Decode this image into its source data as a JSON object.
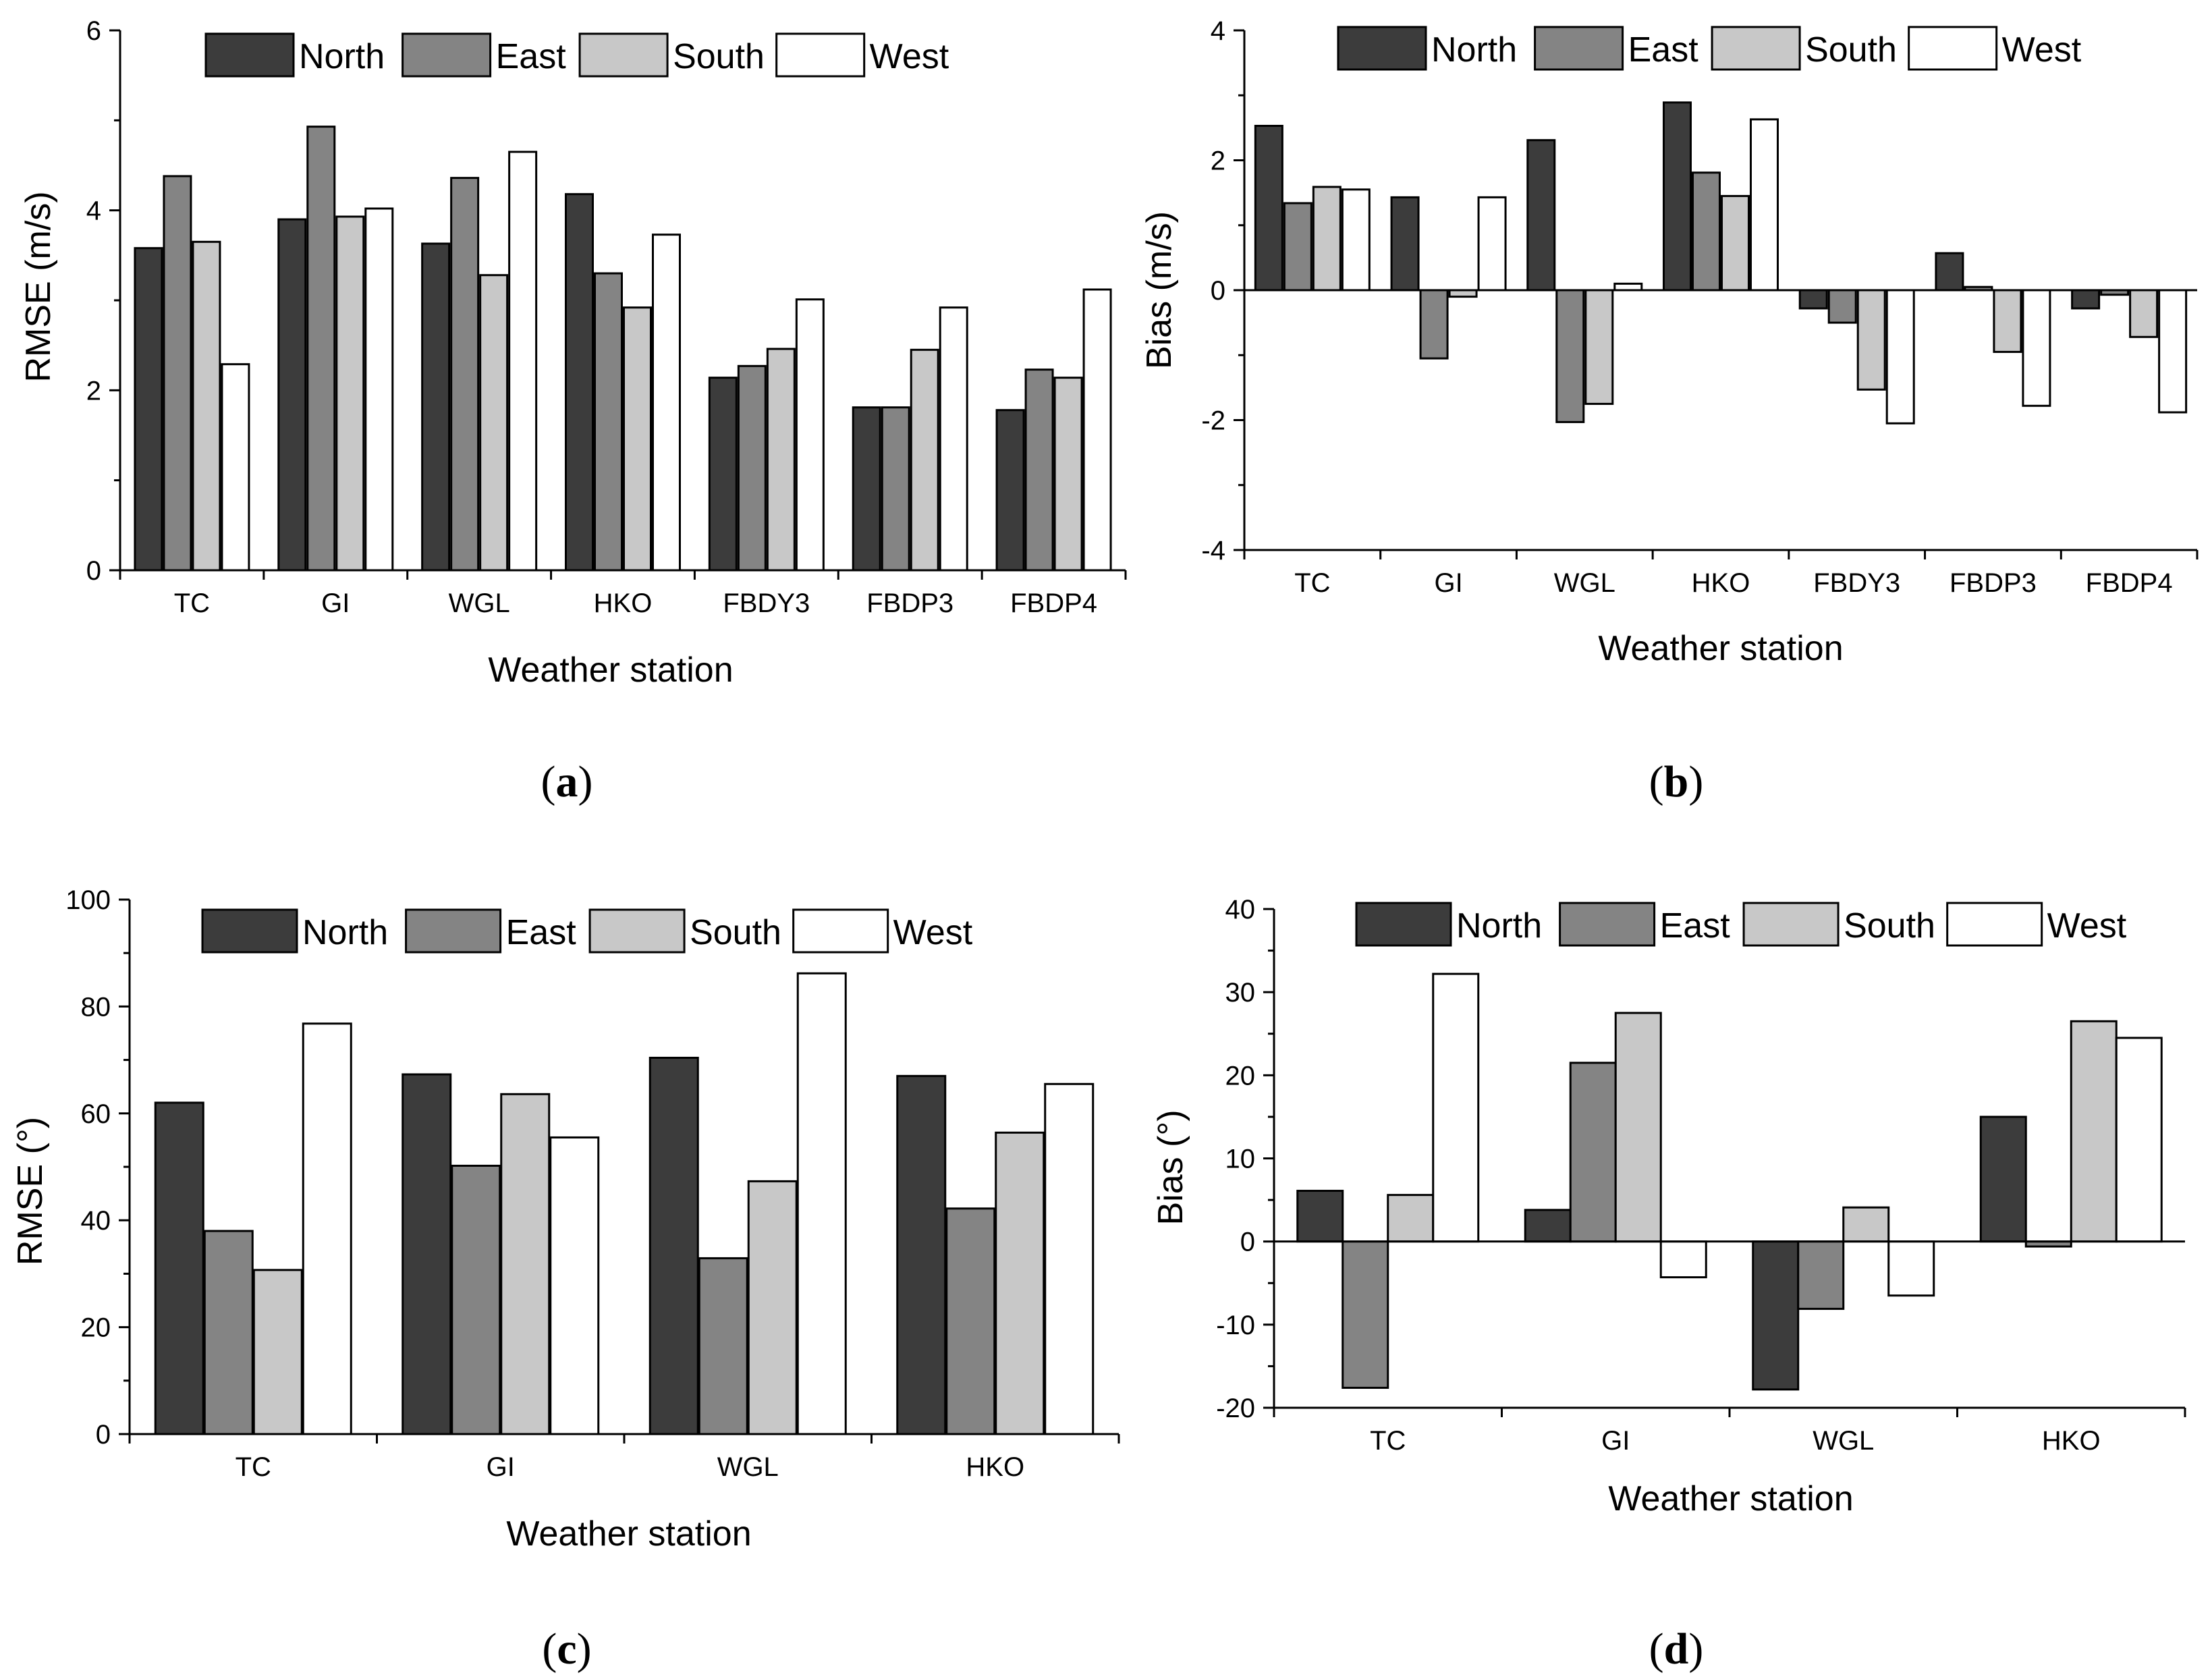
{
  "colors": {
    "North": "#3c3c3c",
    "East": "#848484",
    "South": "#c8c8c8",
    "West": "#ffffff",
    "stroke": "#000000"
  },
  "chart_data": [
    {
      "id": "a",
      "caption": "a",
      "type": "bar",
      "xlabel": "Weather station",
      "ylabel": "RMSE (m/s)",
      "categories": [
        "TC",
        "GI",
        "WGL",
        "HKO",
        "FBDY3",
        "FBDP3",
        "FBDP4"
      ],
      "ylim": [
        0,
        6
      ],
      "yticks": [
        0,
        2,
        4,
        6
      ],
      "ytick_labels": [
        "0",
        "2",
        "4",
        "6"
      ],
      "grid": false,
      "legend": "top",
      "series": [
        {
          "name": "North",
          "values": [
            3.58,
            3.9,
            3.63,
            4.18,
            2.14,
            1.81,
            1.78
          ]
        },
        {
          "name": "East",
          "values": [
            4.38,
            4.93,
            4.36,
            3.3,
            2.27,
            1.81,
            2.23
          ]
        },
        {
          "name": "South",
          "values": [
            3.65,
            3.93,
            3.28,
            2.92,
            2.46,
            2.45,
            2.14
          ]
        },
        {
          "name": "West",
          "values": [
            2.29,
            4.02,
            4.65,
            3.73,
            3.01,
            2.92,
            3.12
          ]
        }
      ]
    },
    {
      "id": "b",
      "caption": "b",
      "type": "bar",
      "xlabel": "Weather station",
      "ylabel": "Bias (m/s)",
      "categories": [
        "TC",
        "GI",
        "WGL",
        "HKO",
        "FBDY3",
        "FBDP3",
        "FBDP4"
      ],
      "ylim": [
        -4,
        4
      ],
      "yticks": [
        -4,
        -2,
        0,
        2,
        4
      ],
      "ytick_labels": [
        "-4",
        "-2",
        "0",
        "2",
        "4"
      ],
      "grid": false,
      "legend": "top",
      "series": [
        {
          "name": "North",
          "values": [
            2.53,
            1.43,
            2.31,
            2.89,
            -0.28,
            0.57,
            -0.28
          ]
        },
        {
          "name": "East",
          "values": [
            1.34,
            -1.05,
            -2.03,
            1.81,
            -0.5,
            0.05,
            -0.07
          ]
        },
        {
          "name": "South",
          "values": [
            1.59,
            -0.1,
            -1.75,
            1.45,
            -1.53,
            -0.95,
            -0.72
          ]
        },
        {
          "name": "West",
          "values": [
            1.55,
            1.43,
            0.1,
            2.63,
            -2.05,
            -1.78,
            -1.88
          ]
        }
      ]
    },
    {
      "id": "c",
      "caption": "c",
      "type": "bar",
      "xlabel": "Weather station",
      "ylabel": "RMSE (°)",
      "categories": [
        "TC",
        "GI",
        "WGL",
        "HKO"
      ],
      "ylim": [
        0,
        100
      ],
      "yticks": [
        0,
        20,
        40,
        60,
        80,
        100
      ],
      "ytick_labels": [
        "0",
        "20",
        "40",
        "60",
        "80",
        "100"
      ],
      "grid": false,
      "legend": "top",
      "series": [
        {
          "name": "North",
          "values": [
            62.0,
            67.3,
            70.4,
            67.0
          ]
        },
        {
          "name": "East",
          "values": [
            38.0,
            50.2,
            32.9,
            42.2
          ]
        },
        {
          "name": "South",
          "values": [
            30.7,
            63.6,
            47.3,
            56.4
          ]
        },
        {
          "name": "West",
          "values": [
            76.8,
            55.5,
            86.2,
            65.5
          ]
        }
      ]
    },
    {
      "id": "d",
      "caption": "d",
      "type": "bar",
      "xlabel": "Weather station",
      "ylabel": "Bias (°)",
      "categories": [
        "TC",
        "GI",
        "WGL",
        "HKO"
      ],
      "ylim": [
        -20,
        40
      ],
      "yticks": [
        -20,
        -10,
        0,
        10,
        20,
        30,
        40
      ],
      "ytick_labels": [
        "-20",
        "-10",
        "0",
        "10",
        "20",
        "30",
        "40"
      ],
      "grid": false,
      "legend": "top",
      "series": [
        {
          "name": "North",
          "values": [
            6.1,
            3.8,
            -17.8,
            15.0
          ]
        },
        {
          "name": "East",
          "values": [
            -17.6,
            21.5,
            -8.1,
            -0.6
          ]
        },
        {
          "name": "South",
          "values": [
            5.6,
            27.5,
            4.1,
            26.5
          ]
        },
        {
          "name": "West",
          "values": [
            32.2,
            -4.3,
            -6.5,
            24.5
          ]
        }
      ]
    }
  ]
}
